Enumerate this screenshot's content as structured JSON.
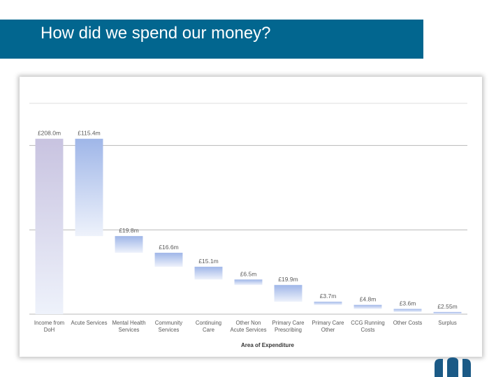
{
  "slide": {
    "title": "How did we spend our money?"
  },
  "colors": {
    "title_bar": "#02668f",
    "income_bar_top": "#c8c3e0",
    "bar_top": "#9fb6e8",
    "bar_bottom": "#eef2fb",
    "gridline": "#b8b8b8",
    "logo": "#1b5a86"
  },
  "chart_data": {
    "type": "waterfall",
    "title": "",
    "xlabel": "Area of Expenditure",
    "ylabel": "",
    "ylim": [
      0,
      250
    ],
    "grid": "horizontal",
    "categories": [
      [
        "Income from",
        "DoH"
      ],
      [
        "Acute Services"
      ],
      [
        "Mental Health",
        "Services"
      ],
      [
        "Community",
        "Services"
      ],
      [
        "Continuing",
        "Care"
      ],
      [
        "Other Non",
        "Acute Services"
      ],
      [
        "Primary Care",
        "Prescribing"
      ],
      [
        "Primary Care",
        "Other"
      ],
      [
        "CCG Running",
        "Costs"
      ],
      [
        "Other Costs"
      ],
      [
        "Surplus"
      ]
    ],
    "values": [
      208.0,
      115.4,
      19.8,
      16.6,
      15.1,
      6.5,
      19.9,
      3.7,
      4.8,
      3.6,
      2.55
    ],
    "labels": [
      "£208.0m",
      "£115.4m",
      "£19.8m",
      "£16.6m",
      "£15.1m",
      "£6.5m",
      "£19.9m",
      "£3.7m",
      "£4.8m",
      "£3.6m",
      "£2.55m"
    ],
    "measures": [
      "total",
      "relative",
      "relative",
      "relative",
      "relative",
      "relative",
      "relative",
      "relative",
      "relative",
      "relative",
      "relative"
    ]
  }
}
